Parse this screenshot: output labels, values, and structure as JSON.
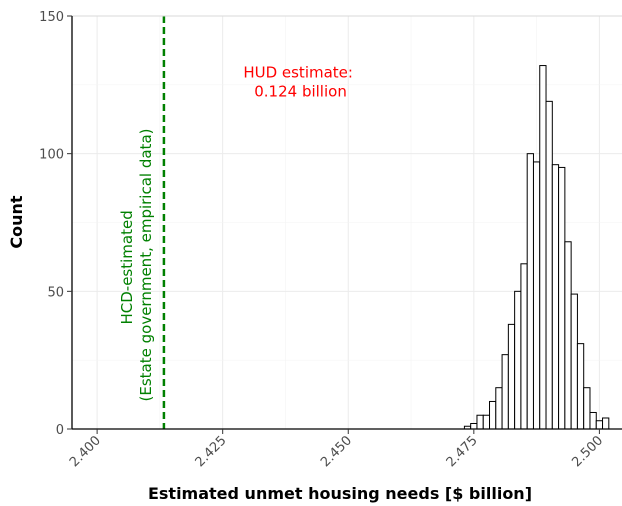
{
  "chart_data": {
    "type": "bar",
    "title": "",
    "xlabel": "Estimated unmet housing needs [$ billion]",
    "ylabel": "Count",
    "xlim": [
      2.395,
      2.5045
    ],
    "ylim": [
      0,
      150
    ],
    "x_ticks": [
      2.4,
      2.425,
      2.45,
      2.475,
      2.5
    ],
    "x_tick_labels": [
      "2.400",
      "2.425",
      "2.450",
      "2.475",
      "2.500"
    ],
    "y_ticks": [
      0,
      50,
      100,
      150
    ],
    "y_tick_labels": [
      "0",
      "50",
      "100",
      "150"
    ],
    "grid": true,
    "bin_width": 0.00125,
    "bars": [
      {
        "x": 2.47375,
        "y": 1
      },
      {
        "x": 2.475,
        "y": 2
      },
      {
        "x": 2.47625,
        "y": 5
      },
      {
        "x": 2.4775,
        "y": 5
      },
      {
        "x": 2.47875,
        "y": 10
      },
      {
        "x": 2.48,
        "y": 15
      },
      {
        "x": 2.48125,
        "y": 27
      },
      {
        "x": 2.4825,
        "y": 38
      },
      {
        "x": 2.48375,
        "y": 50
      },
      {
        "x": 2.485,
        "y": 60
      },
      {
        "x": 2.48625,
        "y": 100
      },
      {
        "x": 2.4875,
        "y": 97
      },
      {
        "x": 2.48875,
        "y": 132
      },
      {
        "x": 2.49,
        "y": 119
      },
      {
        "x": 2.49125,
        "y": 96
      },
      {
        "x": 2.4925,
        "y": 95
      },
      {
        "x": 2.49375,
        "y": 68
      },
      {
        "x": 2.495,
        "y": 49
      },
      {
        "x": 2.49625,
        "y": 31
      },
      {
        "x": 2.4975,
        "y": 15
      },
      {
        "x": 2.49875,
        "y": 6
      },
      {
        "x": 2.5,
        "y": 3
      },
      {
        "x": 2.50125,
        "y": 4
      }
    ],
    "reference_line": {
      "x": 2.4133,
      "color": "#008000",
      "style": "dashed",
      "label_lines": [
        "HCD-estimated",
        "(Estate government, empirical data)"
      ]
    },
    "annotation": {
      "lines": [
        "HUD estimate:",
        "0.124 billion"
      ],
      "color": "#ff0000",
      "x": 2.4405,
      "y": 127
    },
    "bar_fill": "#ffffff",
    "bar_stroke": "#000000"
  }
}
